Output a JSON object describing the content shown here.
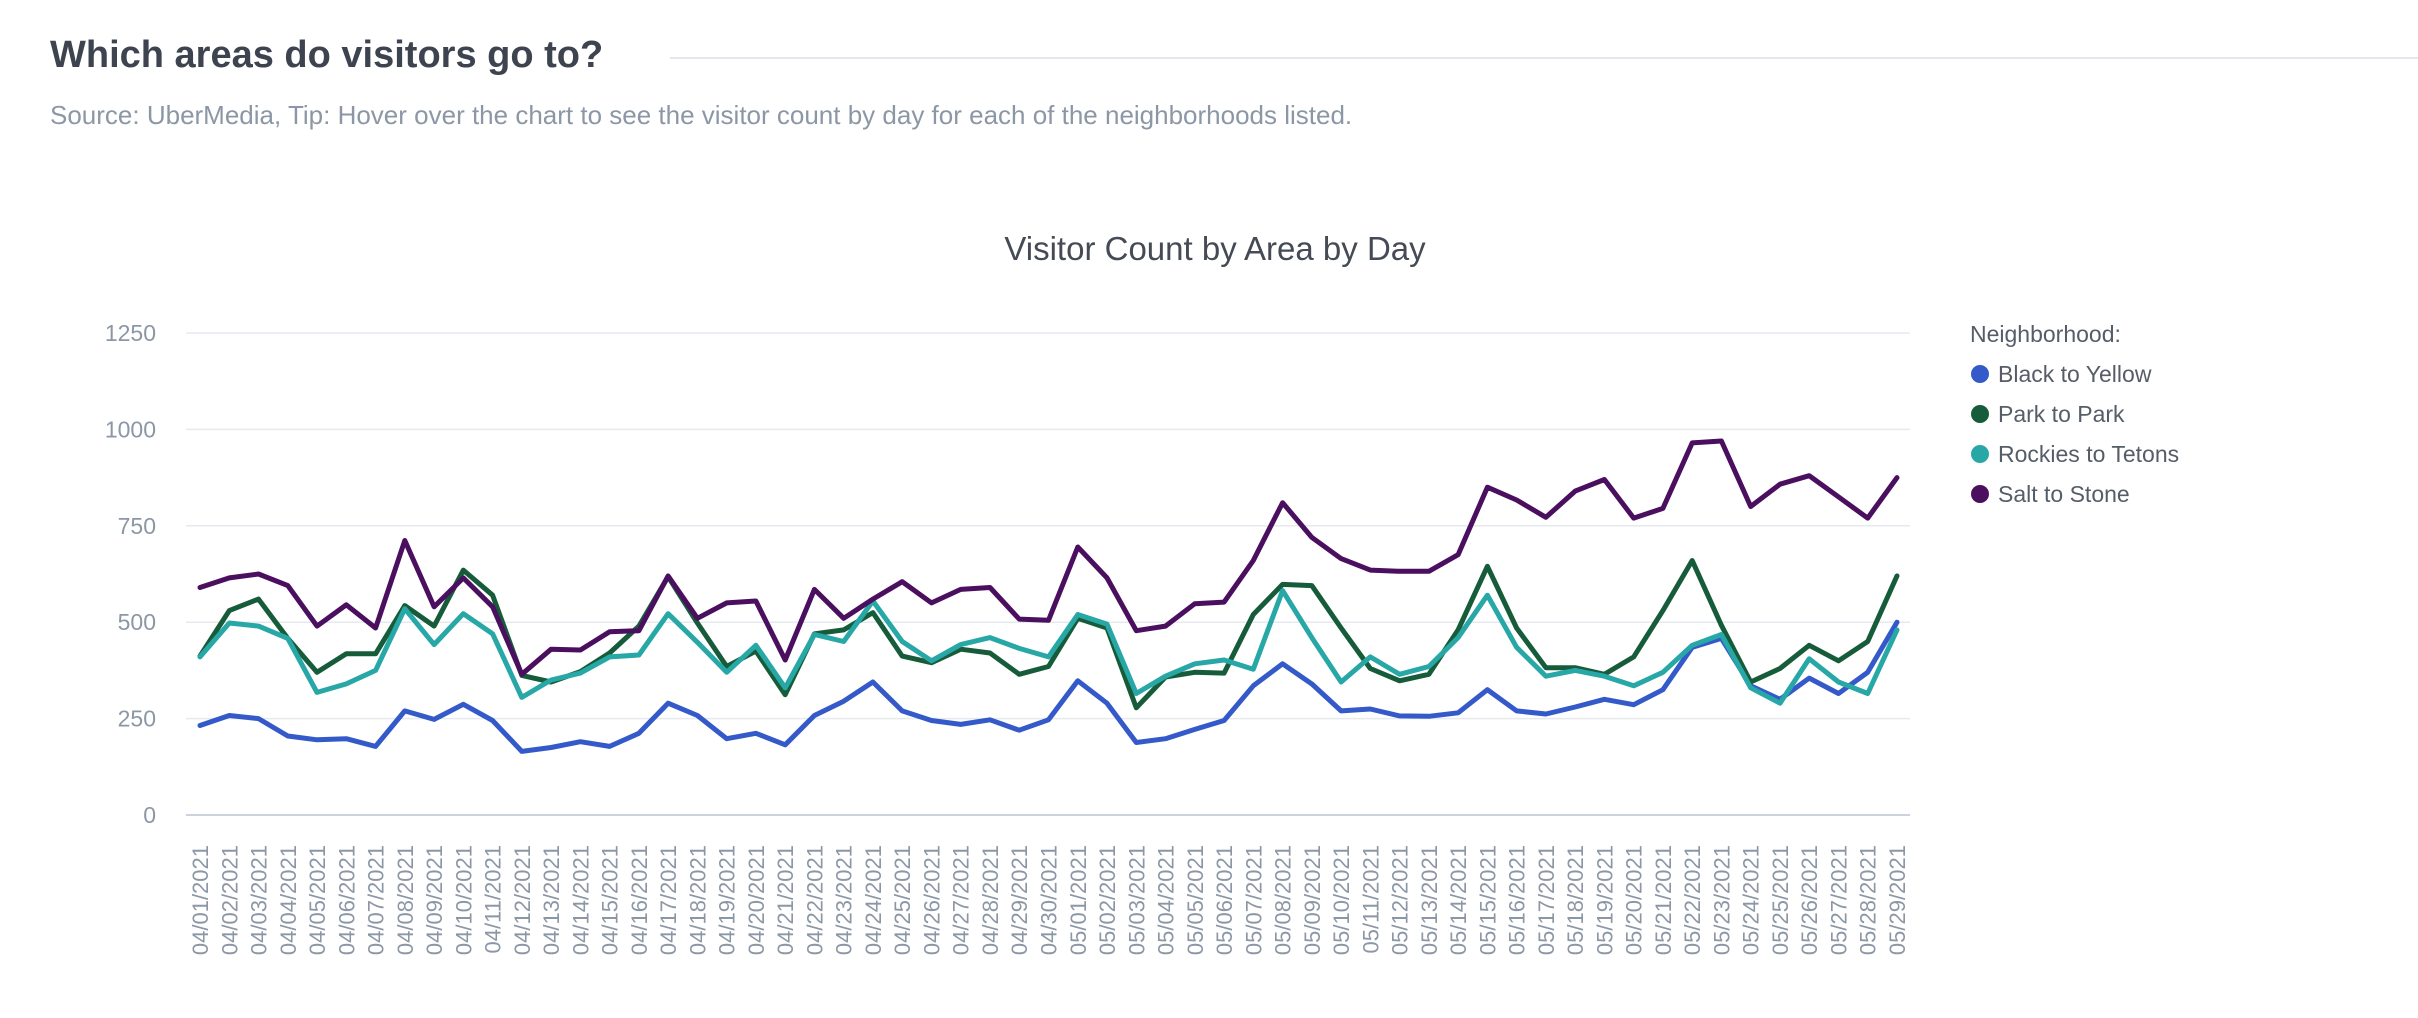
{
  "header": {
    "title": "Which areas do visitors go to?",
    "subtitle": "Source: UberMedia, Tip: Hover over the chart to see the visitor count by day for each of the neighborhoods listed."
  },
  "chart_data": {
    "type": "line",
    "title": "Visitor Count by Area by Day",
    "xlabel": "",
    "ylabel": "",
    "ylim": [
      0,
      1250
    ],
    "yticks": [
      0,
      250,
      500,
      750,
      1000,
      1250
    ],
    "grid": true,
    "legend": {
      "title": "Neighborhood:",
      "placement": "right"
    },
    "x": [
      "04/01/2021",
      "04/02/2021",
      "04/03/2021",
      "04/04/2021",
      "04/05/2021",
      "04/06/2021",
      "04/07/2021",
      "04/08/2021",
      "04/09/2021",
      "04/10/2021",
      "04/11/2021",
      "04/12/2021",
      "04/13/2021",
      "04/14/2021",
      "04/15/2021",
      "04/16/2021",
      "04/17/2021",
      "04/18/2021",
      "04/19/2021",
      "04/20/2021",
      "04/21/2021",
      "04/22/2021",
      "04/23/2021",
      "04/24/2021",
      "04/25/2021",
      "04/26/2021",
      "04/27/2021",
      "04/28/2021",
      "04/29/2021",
      "04/30/2021",
      "05/01/2021",
      "05/02/2021",
      "05/03/2021",
      "05/04/2021",
      "05/05/2021",
      "05/06/2021",
      "05/07/2021",
      "05/08/2021",
      "05/09/2021",
      "05/10/2021",
      "05/11/2021",
      "05/12/2021",
      "05/13/2021",
      "05/14/2021",
      "05/15/2021",
      "05/16/2021",
      "05/17/2021",
      "05/18/2021",
      "05/19/2021",
      "05/20/2021",
      "05/21/2021",
      "05/22/2021",
      "05/23/2021",
      "05/24/2021",
      "05/25/2021",
      "05/26/2021",
      "05/27/2021",
      "05/28/2021",
      "05/29/2021"
    ],
    "series": [
      {
        "name": "Black to Yellow",
        "color": "#3459c9",
        "values": [
          232,
          258,
          250,
          205,
          195,
          198,
          178,
          270,
          248,
          287,
          245,
          165,
          175,
          190,
          178,
          212,
          290,
          258,
          198,
          212,
          182,
          258,
          295,
          345,
          270,
          245,
          235,
          247,
          220,
          247,
          348,
          290,
          188,
          198,
          222,
          245,
          335,
          392,
          340,
          270,
          275,
          257,
          256,
          265,
          325,
          270,
          262,
          280,
          300,
          286,
          325,
          435,
          458,
          335,
          300,
          355,
          315,
          370,
          500
        ]
      },
      {
        "name": "Park to Park",
        "color": "#175c3a",
        "values": [
          412,
          530,
          560,
          458,
          370,
          418,
          418,
          543,
          490,
          635,
          570,
          362,
          345,
          372,
          420,
          490,
          618,
          498,
          385,
          425,
          312,
          470,
          480,
          525,
          412,
          395,
          430,
          420,
          365,
          385,
          510,
          485,
          278,
          358,
          370,
          368,
          520,
          598,
          595,
          485,
          380,
          348,
          365,
          480,
          645,
          485,
          382,
          382,
          365,
          410,
          530,
          660,
          492,
          345,
          380,
          440,
          400,
          450,
          620
        ]
      },
      {
        "name": "Rockies to Tetons",
        "color": "#28a7a7",
        "values": [
          410,
          498,
          490,
          458,
          318,
          340,
          375,
          535,
          442,
          522,
          470,
          305,
          350,
          368,
          410,
          415,
          522,
          448,
          370,
          440,
          330,
          468,
          450,
          555,
          450,
          400,
          442,
          460,
          432,
          410,
          520,
          495,
          315,
          360,
          392,
          402,
          378,
          582,
          460,
          345,
          410,
          365,
          385,
          460,
          570,
          435,
          360,
          375,
          360,
          335,
          370,
          440,
          468,
          330,
          290,
          405,
          345,
          315,
          480
        ]
      },
      {
        "name": "Salt to Stone",
        "color": "#4a0f5e",
        "values": [
          590,
          615,
          625,
          595,
          490,
          545,
          485,
          712,
          540,
          615,
          540,
          365,
          430,
          428,
          475,
          478,
          620,
          510,
          550,
          555,
          402,
          585,
          510,
          560,
          605,
          550,
          585,
          590,
          508,
          505,
          695,
          615,
          478,
          490,
          548,
          552,
          660,
          810,
          720,
          665,
          635,
          632,
          632,
          675,
          850,
          817,
          772,
          840,
          870,
          770,
          795,
          965,
          970,
          800,
          858,
          880,
          825,
          770,
          875
        ]
      }
    ]
  }
}
